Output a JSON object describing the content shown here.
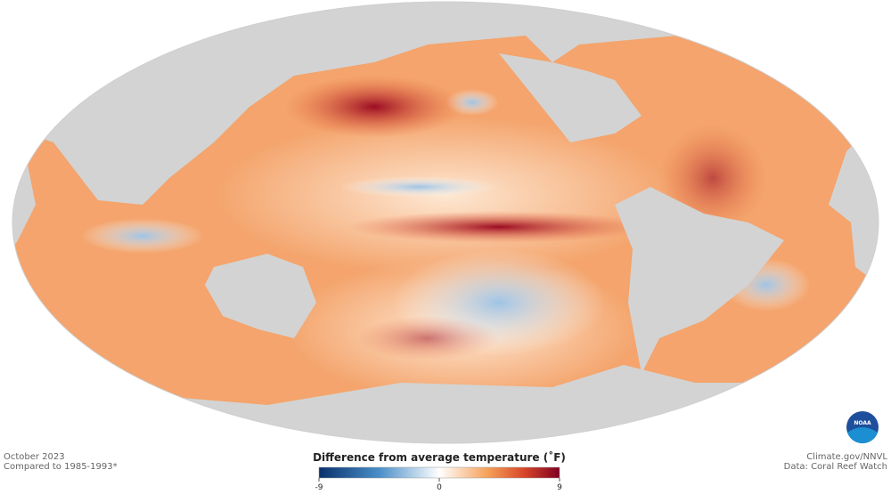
{
  "map": {
    "date": "October 2023",
    "baseline": "Compared to 1985-1993*"
  },
  "legend": {
    "title": "Difference from average temperature (˚F)",
    "range": [
      -9,
      9
    ],
    "ticks": [
      -9,
      0,
      9
    ]
  },
  "credits": {
    "source": "Climate.gov/NNVL",
    "data": "Data: Coral Reef Watch"
  },
  "logo": "NOAA"
}
